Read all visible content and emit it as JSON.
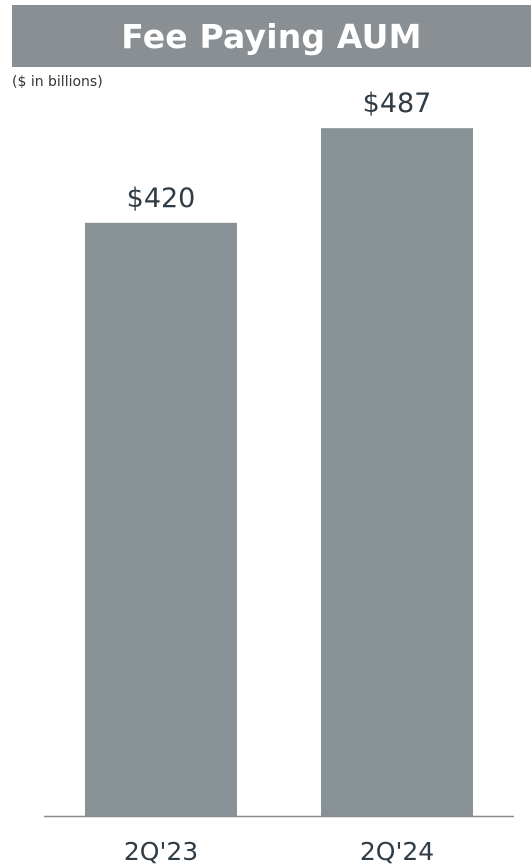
{
  "header": {
    "title": "Fee Paying AUM",
    "subtitle": "($ in billions)"
  },
  "colors": {
    "banner": "#898f93",
    "bar": "#879196",
    "axis": "#8c8c8c"
  },
  "chart_data": {
    "type": "bar",
    "title": "Fee Paying AUM",
    "subtitle": "($ in billions)",
    "categories": [
      "2Q'23",
      "2Q'24"
    ],
    "values": [
      420,
      487
    ],
    "data_labels": [
      "$420",
      "$487"
    ],
    "xlabel": "",
    "ylabel": "",
    "ylim": [
      0,
      565
    ],
    "grid": false,
    "legend": "none"
  }
}
